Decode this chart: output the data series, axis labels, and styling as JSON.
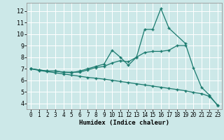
{
  "xlabel": "Humidex (Indice chaleur)",
  "bg_color": "#cce8e8",
  "line_color": "#1a7a6e",
  "grid_color": "#ffffff",
  "xlim": [
    -0.5,
    23.5
  ],
  "ylim": [
    3.5,
    12.7
  ],
  "xticks": [
    0,
    1,
    2,
    3,
    4,
    5,
    6,
    7,
    8,
    9,
    10,
    11,
    12,
    13,
    14,
    15,
    16,
    17,
    18,
    19,
    20,
    21,
    22,
    23
  ],
  "yticks": [
    4,
    5,
    6,
    7,
    8,
    9,
    10,
    11,
    12
  ],
  "line1_x": [
    0,
    1,
    2,
    3,
    4,
    5,
    6,
    7,
    8,
    9,
    10,
    11,
    12,
    13,
    14,
    15,
    16,
    17,
    18,
    19
  ],
  "line1_y": [
    7.0,
    6.9,
    6.8,
    6.8,
    6.7,
    6.7,
    6.7,
    6.9,
    7.1,
    7.2,
    7.5,
    7.7,
    7.6,
    8.0,
    8.4,
    8.5,
    8.5,
    8.6,
    9.0,
    9.0
  ],
  "line2_x": [
    0,
    1,
    2,
    3,
    4,
    5,
    6,
    7,
    8,
    9,
    10,
    11,
    12,
    13,
    14,
    15,
    16,
    17,
    19,
    20,
    21,
    22,
    23
  ],
  "line2_y": [
    7.0,
    6.9,
    6.8,
    6.8,
    6.7,
    6.65,
    6.8,
    7.0,
    7.2,
    7.4,
    8.6,
    8.0,
    7.3,
    8.0,
    10.4,
    10.4,
    12.2,
    10.5,
    9.2,
    7.1,
    5.4,
    4.7,
    3.8
  ],
  "line3_x": [
    0,
    1,
    2,
    3,
    4,
    5,
    6,
    7,
    8,
    9,
    10,
    11,
    12,
    13,
    14,
    15,
    16,
    17,
    18,
    19,
    20,
    21,
    22,
    23
  ],
  "line3_y": [
    7.0,
    6.85,
    6.75,
    6.65,
    6.55,
    6.45,
    6.35,
    6.25,
    6.18,
    6.1,
    6.0,
    5.9,
    5.8,
    5.7,
    5.6,
    5.5,
    5.4,
    5.3,
    5.2,
    5.1,
    4.95,
    4.85,
    4.6,
    3.85
  ]
}
